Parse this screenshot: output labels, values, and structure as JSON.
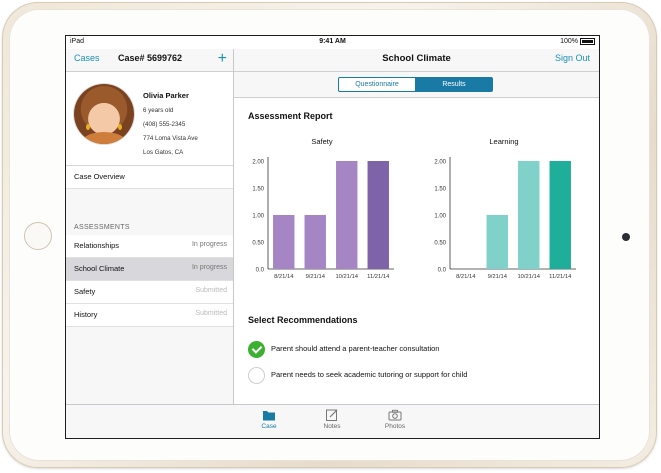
{
  "statusbar": {
    "carrier": "iPad",
    "time": "9:41 AM",
    "battery": "100%"
  },
  "left_nav": {
    "back": "Cases",
    "title": "Case# 5699762",
    "add": "+"
  },
  "profile": {
    "name": "Olivia Parker",
    "age": "6 years old",
    "phone": "(408) 555-2345",
    "address": "774 Loma Vista Ave",
    "city": "Los Gatos, CA"
  },
  "case_overview": "Case Overview",
  "assessments_header": "ASSESSMENTS",
  "assessments": [
    {
      "label": "Relationships",
      "status": "In progress"
    },
    {
      "label": "School Climate",
      "status": "In progress"
    },
    {
      "label": "Safety",
      "status": "Submitted"
    },
    {
      "label": "History",
      "status": "Submitted"
    }
  ],
  "right_nav": {
    "title": "School Climate",
    "signout": "Sign Out"
  },
  "segments": {
    "questionnaire": "Questionnaire",
    "results": "Results",
    "selected": "Results"
  },
  "report_title": "Assessment Report",
  "chart_data": [
    {
      "type": "bar",
      "title": "Safety",
      "categories": [
        "8/21/14",
        "9/21/14",
        "10/21/14",
        "11/21/14"
      ],
      "values": [
        1.0,
        1.0,
        2.0,
        2.0
      ],
      "ylim": [
        0,
        2.0
      ],
      "yticks": [
        "0.0",
        "0.50",
        "1.00",
        "1.50",
        "2.00"
      ],
      "colors": [
        "#a585c3",
        "#a585c3",
        "#a585c3",
        "#7e63a8"
      ],
      "grid": false
    },
    {
      "type": "bar",
      "title": "Learning",
      "categories": [
        "8/21/14",
        "9/21/14",
        "10/21/14",
        "11/21/14"
      ],
      "values": [
        0,
        1.0,
        2.0,
        2.0
      ],
      "ylim": [
        0,
        2.0
      ],
      "yticks": [
        "0.0",
        "0.50",
        "1.00",
        "1.50",
        "2.00"
      ],
      "colors": [
        "#7fd1c9",
        "#7fd1c9",
        "#7fd1c9",
        "#1fae9a"
      ],
      "grid": false
    }
  ],
  "recommendations_title": "Select Recommendations",
  "recommendations": [
    {
      "text": "Parent should attend a parent-teacher consultation",
      "checked": true
    },
    {
      "text": "Parent needs to seek academic tutoring or support for child",
      "checked": false
    }
  ],
  "tabs": [
    {
      "label": "Case",
      "icon": "folder-icon",
      "active": true
    },
    {
      "label": "Notes",
      "icon": "notes-icon",
      "active": false
    },
    {
      "label": "Photos",
      "icon": "camera-icon",
      "active": false
    }
  ],
  "colors": {
    "accent": "#1a7aa6",
    "link": "#1a8fb8",
    "check": "#3cb030"
  }
}
